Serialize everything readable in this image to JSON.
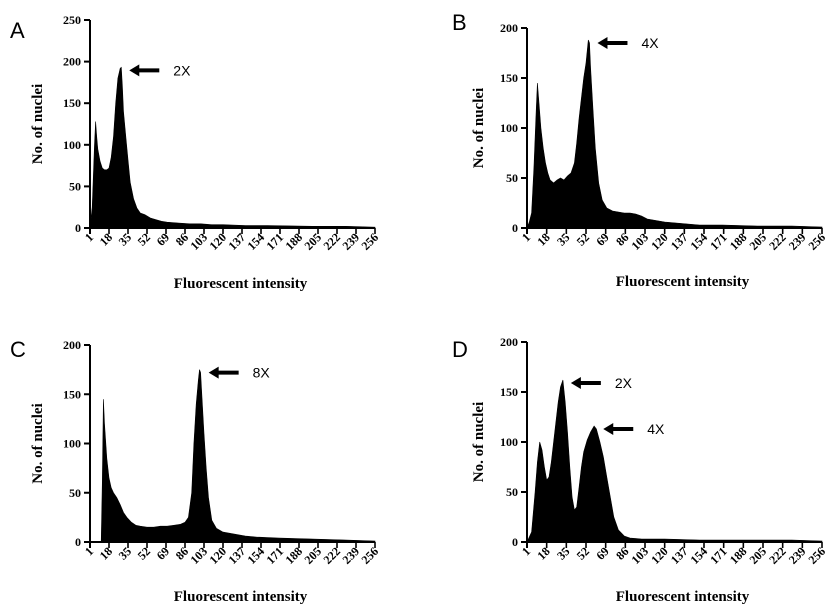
{
  "chart_data": [
    {
      "panel": "A",
      "type": "bar",
      "xlabel": "Fluorescent intensity",
      "ylabel": "No. of nuclei",
      "ylim": [
        0,
        250
      ],
      "yticks": [
        0,
        50,
        100,
        150,
        200,
        250
      ],
      "xlim": [
        1,
        256
      ],
      "xticks": [
        1,
        18,
        35,
        52,
        69,
        86,
        103,
        120,
        137,
        154,
        171,
        188,
        205,
        222,
        239,
        256
      ],
      "annotations": [
        {
          "text": "2X",
          "x": 29,
          "y": 193
        }
      ],
      "peaks": [
        [
          1,
          0
        ],
        [
          3,
          25
        ],
        [
          5,
          100
        ],
        [
          6,
          128
        ],
        [
          7,
          110
        ],
        [
          8,
          95
        ],
        [
          10,
          80
        ],
        [
          12,
          72
        ],
        [
          14,
          70
        ],
        [
          16,
          70
        ],
        [
          18,
          72
        ],
        [
          20,
          85
        ],
        [
          22,
          110
        ],
        [
          24,
          150
        ],
        [
          26,
          180
        ],
        [
          28,
          192
        ],
        [
          29,
          193
        ],
        [
          30,
          170
        ],
        [
          31,
          140
        ],
        [
          33,
          110
        ],
        [
          35,
          82
        ],
        [
          37,
          55
        ],
        [
          40,
          35
        ],
        [
          43,
          24
        ],
        [
          46,
          18
        ],
        [
          50,
          16
        ],
        [
          55,
          12
        ],
        [
          60,
          10
        ],
        [
          65,
          8
        ],
        [
          70,
          7
        ],
        [
          80,
          6
        ],
        [
          90,
          5
        ],
        [
          100,
          5
        ],
        [
          110,
          4
        ],
        [
          120,
          4
        ],
        [
          140,
          3
        ],
        [
          160,
          3
        ],
        [
          200,
          2
        ],
        [
          230,
          2
        ],
        [
          256,
          1
        ]
      ]
    },
    {
      "panel": "B",
      "type": "bar",
      "xlabel": "Fluorescent intensity",
      "ylabel": "No. of nuclei",
      "ylim": [
        0,
        200
      ],
      "yticks": [
        0,
        50,
        100,
        150,
        200
      ],
      "xlim": [
        1,
        256
      ],
      "xticks": [
        1,
        18,
        35,
        52,
        69,
        86,
        103,
        120,
        137,
        154,
        171,
        188,
        205,
        222,
        239,
        256
      ],
      "annotations": [
        {
          "text": "4X",
          "x": 55,
          "y": 188
        }
      ],
      "peaks": [
        [
          1,
          0
        ],
        [
          3,
          6
        ],
        [
          5,
          15
        ],
        [
          7,
          60
        ],
        [
          9,
          120
        ],
        [
          10,
          145
        ],
        [
          11,
          130
        ],
        [
          13,
          100
        ],
        [
          15,
          80
        ],
        [
          17,
          65
        ],
        [
          19,
          55
        ],
        [
          21,
          48
        ],
        [
          24,
          45
        ],
        [
          27,
          48
        ],
        [
          30,
          50
        ],
        [
          33,
          48
        ],
        [
          36,
          52
        ],
        [
          39,
          55
        ],
        [
          42,
          65
        ],
        [
          44,
          85
        ],
        [
          46,
          110
        ],
        [
          48,
          130
        ],
        [
          50,
          150
        ],
        [
          52,
          165
        ],
        [
          54,
          188
        ],
        [
          55,
          185
        ],
        [
          56,
          160
        ],
        [
          58,
          120
        ],
        [
          60,
          80
        ],
        [
          63,
          45
        ],
        [
          66,
          28
        ],
        [
          70,
          20
        ],
        [
          75,
          17
        ],
        [
          80,
          16
        ],
        [
          85,
          15
        ],
        [
          90,
          15
        ],
        [
          95,
          14
        ],
        [
          100,
          12
        ],
        [
          105,
          9
        ],
        [
          110,
          8
        ],
        [
          120,
          6
        ],
        [
          130,
          5
        ],
        [
          140,
          4
        ],
        [
          150,
          3
        ],
        [
          170,
          3
        ],
        [
          200,
          2
        ],
        [
          230,
          2
        ],
        [
          256,
          1
        ]
      ]
    },
    {
      "panel": "C",
      "type": "bar",
      "xlabel": "Fluorescent intensity",
      "ylabel": "No. of nuclei",
      "ylim": [
        0,
        200
      ],
      "yticks": [
        0,
        50,
        100,
        150,
        200
      ],
      "xlim": [
        1,
        256
      ],
      "xticks": [
        1,
        18,
        35,
        52,
        69,
        86,
        103,
        120,
        137,
        154,
        171,
        188,
        205,
        222,
        239,
        256
      ],
      "annotations": [
        {
          "text": "8X",
          "x": 100,
          "y": 175
        }
      ],
      "peaks": [
        [
          1,
          0
        ],
        [
          11,
          0
        ],
        [
          12,
          60
        ],
        [
          13,
          145
        ],
        [
          14,
          120
        ],
        [
          16,
          85
        ],
        [
          18,
          65
        ],
        [
          20,
          55
        ],
        [
          22,
          50
        ],
        [
          25,
          45
        ],
        [
          28,
          38
        ],
        [
          31,
          30
        ],
        [
          34,
          25
        ],
        [
          38,
          20
        ],
        [
          42,
          17
        ],
        [
          46,
          16
        ],
        [
          52,
          15
        ],
        [
          58,
          15
        ],
        [
          64,
          16
        ],
        [
          70,
          16
        ],
        [
          76,
          17
        ],
        [
          82,
          18
        ],
        [
          86,
          20
        ],
        [
          89,
          25
        ],
        [
          92,
          50
        ],
        [
          94,
          100
        ],
        [
          96,
          140
        ],
        [
          98,
          165
        ],
        [
          99,
          175
        ],
        [
          100,
          172
        ],
        [
          101,
          150
        ],
        [
          103,
          110
        ],
        [
          105,
          75
        ],
        [
          107,
          45
        ],
        [
          110,
          22
        ],
        [
          114,
          14
        ],
        [
          120,
          10
        ],
        [
          130,
          8
        ],
        [
          140,
          6
        ],
        [
          150,
          5
        ],
        [
          170,
          4
        ],
        [
          200,
          3
        ],
        [
          230,
          2
        ],
        [
          256,
          1
        ]
      ]
    },
    {
      "panel": "D",
      "type": "bar",
      "xlabel": "Fluorescent intensity",
      "ylabel": "No. of nuclei",
      "ylim": [
        0,
        200
      ],
      "yticks": [
        0,
        50,
        100,
        150,
        200
      ],
      "xlim": [
        1,
        256
      ],
      "xticks": [
        1,
        18,
        35,
        52,
        69,
        86,
        103,
        120,
        137,
        154,
        171,
        188,
        205,
        222,
        239,
        256
      ],
      "annotations": [
        {
          "text": "2X",
          "x": 32,
          "y": 162
        },
        {
          "text": "4X",
          "x": 60,
          "y": 116
        }
      ],
      "peaks": [
        [
          1,
          0
        ],
        [
          5,
          10
        ],
        [
          8,
          50
        ],
        [
          10,
          80
        ],
        [
          12,
          100
        ],
        [
          14,
          92
        ],
        [
          16,
          75
        ],
        [
          18,
          62
        ],
        [
          20,
          65
        ],
        [
          22,
          80
        ],
        [
          24,
          100
        ],
        [
          26,
          120
        ],
        [
          28,
          140
        ],
        [
          30,
          155
        ],
        [
          32,
          162
        ],
        [
          34,
          140
        ],
        [
          36,
          110
        ],
        [
          38,
          75
        ],
        [
          40,
          45
        ],
        [
          42,
          32
        ],
        [
          44,
          35
        ],
        [
          46,
          55
        ],
        [
          48,
          75
        ],
        [
          50,
          90
        ],
        [
          53,
          102
        ],
        [
          56,
          110
        ],
        [
          59,
          116
        ],
        [
          61,
          113
        ],
        [
          64,
          100
        ],
        [
          67,
          85
        ],
        [
          70,
          65
        ],
        [
          73,
          45
        ],
        [
          76,
          25
        ],
        [
          80,
          12
        ],
        [
          85,
          6
        ],
        [
          90,
          4
        ],
        [
          100,
          3
        ],
        [
          120,
          3
        ],
        [
          150,
          2
        ],
        [
          200,
          2
        ],
        [
          230,
          2
        ],
        [
          256,
          1
        ]
      ]
    }
  ]
}
